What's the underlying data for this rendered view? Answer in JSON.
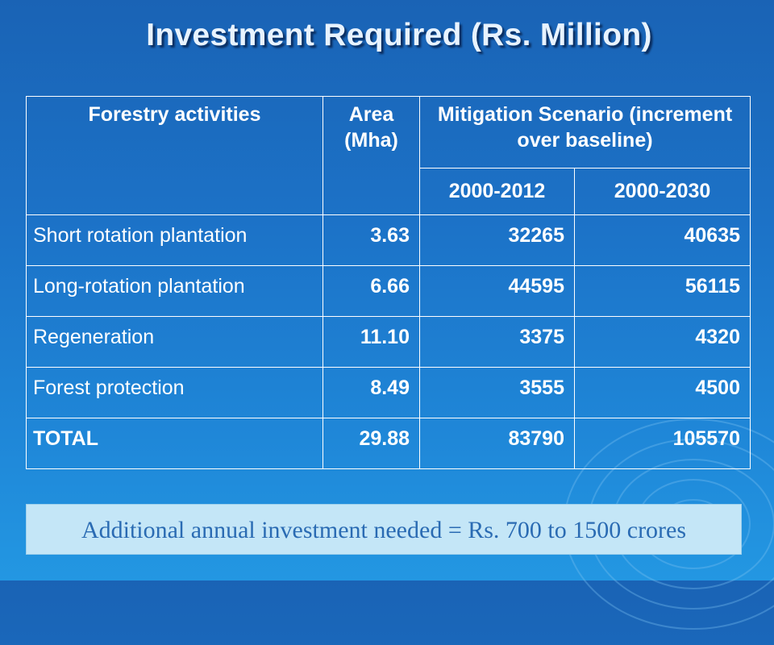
{
  "title": "Investment Required (Rs. Million)",
  "table": {
    "header": {
      "col1": "Forestry activities",
      "col2": "Area (Mha)",
      "group": "Mitigation Scenario (increment over baseline)",
      "sub1": "2000-2012",
      "sub2": "2000-2030"
    },
    "rows": [
      {
        "activity": "Short rotation plantation",
        "area": "3.63",
        "p2012": "32265",
        "p2030": "40635"
      },
      {
        "activity": "Long-rotation plantation",
        "area": "6.66",
        "p2012": "44595",
        "p2030": "56115"
      },
      {
        "activity": "Regeneration",
        "area": "11.10",
        "p2012": "3375",
        "p2030": "4320"
      },
      {
        "activity": "Forest protection",
        "area": "8.49",
        "p2012": "3555",
        "p2030": "4500"
      },
      {
        "activity": "TOTAL",
        "area": "29.88",
        "p2012": "83790",
        "p2030": "105570"
      }
    ]
  },
  "note": "Additional annual investment needed = Rs. 700 to 1500 crores"
}
